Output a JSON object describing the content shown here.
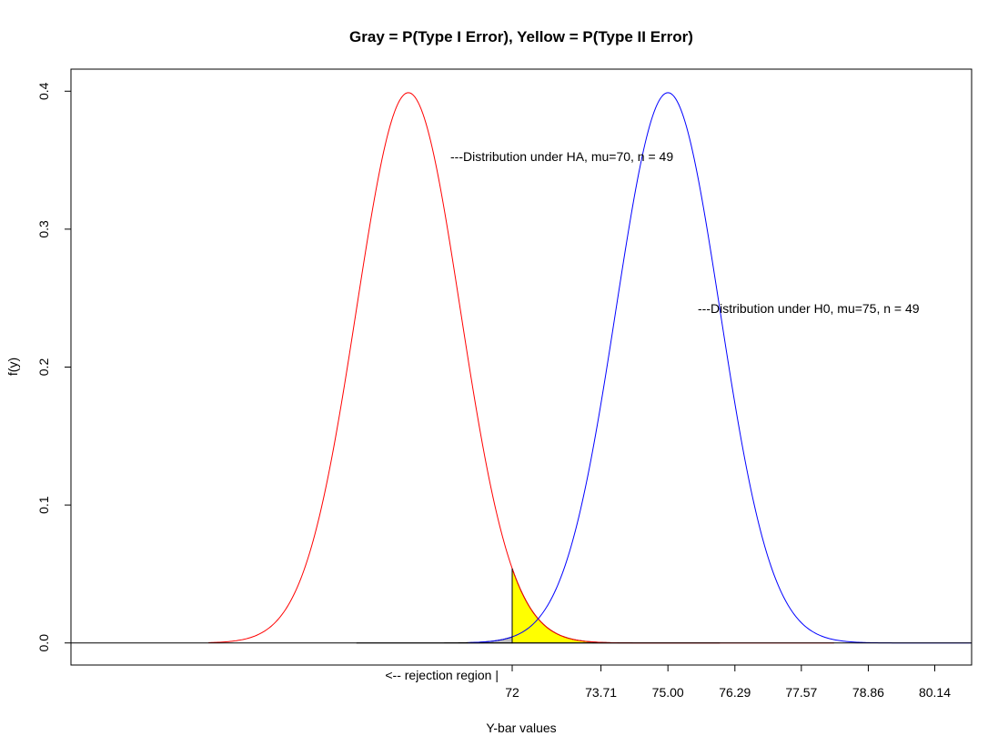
{
  "chart_data": {
    "type": "line",
    "title": "Gray = P(Type I Error), Yellow = P(Type II Error)",
    "xlabel": "Y-bar values",
    "ylabel": "f(y)",
    "xlim": [
      63.5,
      80.85
    ],
    "ylim": [
      -0.016,
      0.416
    ],
    "y_ticks": [
      0.0,
      0.1,
      0.2,
      0.3,
      0.4
    ],
    "y_tick_labels": [
      "0.0",
      "0.1",
      "0.2",
      "0.3",
      "0.4"
    ],
    "x_ticks": [
      72,
      73.71,
      75.0,
      76.29,
      77.57,
      78.86,
      80.14
    ],
    "x_tick_labels": [
      "72",
      "73.71",
      "75.00",
      "76.29",
      "77.57",
      "78.86",
      "80.14"
    ],
    "critical_value": 72,
    "series": [
      {
        "color": "#ff0000",
        "mean": 70,
        "sd": 1,
        "x_range": [
          66.15,
          78.2
        ],
        "peak_density": 0.399
      },
      {
        "color": "#0000ff",
        "mean": 75,
        "sd": 1,
        "x_range": [
          71.15,
          83.0
        ],
        "peak_density": 0.399
      }
    ],
    "shaded_regions": [
      {
        "color": "#bebebe",
        "under_mean": 75,
        "x_from": 69.0,
        "x_to": 72
      },
      {
        "color": "#ffff00",
        "under_mean": 70,
        "x_from": 72,
        "x_to": 76.0
      }
    ],
    "baseline": 0,
    "grid": false
  },
  "annotations": {
    "ha_label": "---Distribution under HA, mu=70, n = 49",
    "h0_label": "---Distribution under H0, mu=75, n = 49",
    "rejection_label": "<-- rejection region |"
  },
  "colors": {
    "ha_curve": "#ff0000",
    "h0_curve": "#0000ff",
    "type1_fill": "#bebebe",
    "type2_fill": "#ffff00"
  }
}
